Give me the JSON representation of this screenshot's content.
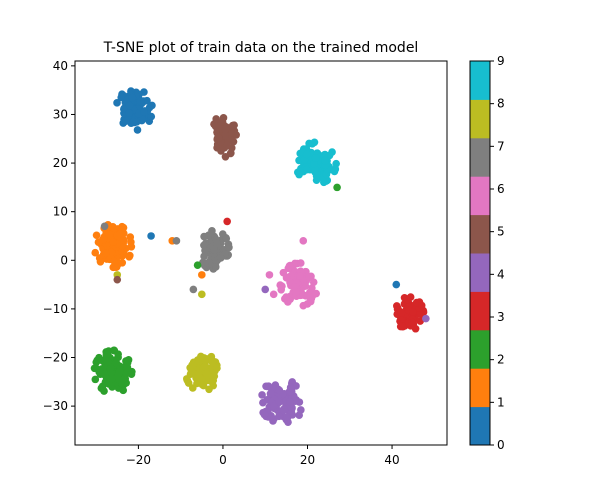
{
  "chart_data": {
    "type": "scatter",
    "title": "T-SNE plot of train data on the trained model",
    "xlabel": "",
    "ylabel": "",
    "xlim": [
      -35,
      53
    ],
    "ylim": [
      -38,
      41
    ],
    "x_ticks": [
      -20,
      0,
      20,
      40
    ],
    "x_tick_labels": [
      "−20",
      "0",
      "20",
      "40"
    ],
    "y_ticks": [
      -30,
      -20,
      -10,
      0,
      10,
      20,
      30,
      40
    ],
    "y_tick_labels": [
      "−30",
      "−20",
      "−10",
      "0",
      "10",
      "20",
      "30",
      "40"
    ],
    "grid": false,
    "colorbar": {
      "range": [
        0,
        9
      ],
      "tick_labels": [
        "0",
        "1",
        "2",
        "3",
        "4",
        "5",
        "6",
        "7",
        "8",
        "9"
      ],
      "colors": [
        "#1f77b4",
        "#ff7f0e",
        "#2ca02c",
        "#d62728",
        "#9467bd",
        "#8c564b",
        "#e377c2",
        "#7f7f7f",
        "#bcbd22",
        "#17becf"
      ]
    },
    "clusters": [
      {
        "label": 0,
        "center": [
          -21,
          31
        ],
        "spread": [
          2.6,
          2.6
        ],
        "count": 95,
        "color": "#1f77b4"
      },
      {
        "label": 1,
        "center": [
          -26,
          3
        ],
        "spread": [
          2.7,
          2.7
        ],
        "count": 120,
        "color": "#ff7f0e"
      },
      {
        "label": 2,
        "center": [
          -26,
          -23
        ],
        "spread": [
          2.7,
          2.7
        ],
        "count": 110,
        "color": "#2ca02c"
      },
      {
        "label": 3,
        "center": [
          44,
          -11
        ],
        "spread": [
          2.1,
          2.1
        ],
        "count": 100,
        "color": "#d62728"
      },
      {
        "label": 4,
        "center": [
          14,
          -29
        ],
        "spread": [
          3.2,
          2.7
        ],
        "count": 95,
        "color": "#9467bd"
      },
      {
        "label": 5,
        "center": [
          0,
          25.5
        ],
        "spread": [
          1.9,
          2.6
        ],
        "count": 75,
        "color": "#8c564b"
      },
      {
        "label": 6,
        "center": [
          18,
          -5
        ],
        "spread": [
          2.7,
          2.7
        ],
        "count": 95,
        "color": "#e377c2"
      },
      {
        "label": 7,
        "center": [
          -2,
          2
        ],
        "spread": [
          2.1,
          2.5
        ],
        "count": 95,
        "color": "#7f7f7f"
      },
      {
        "label": 8,
        "center": [
          -5,
          -23
        ],
        "spread": [
          2.3,
          2.4
        ],
        "count": 95,
        "color": "#bcbd22"
      },
      {
        "label": 9,
        "center": [
          22,
          20
        ],
        "spread": [
          2.9,
          2.6
        ],
        "count": 110,
        "color": "#17becf"
      }
    ],
    "outliers": [
      {
        "x": -17,
        "y": 5,
        "label": 0
      },
      {
        "x": -12,
        "y": 4,
        "label": 1
      },
      {
        "x": -11,
        "y": 4,
        "label": 7
      },
      {
        "x": 1,
        "y": 8,
        "label": 3
      },
      {
        "x": -7,
        "y": -6,
        "label": 7
      },
      {
        "x": -5,
        "y": -7,
        "label": 8
      },
      {
        "x": -5,
        "y": -3,
        "label": 1
      },
      {
        "x": 11,
        "y": -3,
        "label": 6
      },
      {
        "x": 10,
        "y": -6,
        "label": 4
      },
      {
        "x": 12,
        "y": -7,
        "label": 6
      },
      {
        "x": 19,
        "y": 4,
        "label": 6
      },
      {
        "x": 27,
        "y": 15,
        "label": 2
      },
      {
        "x": 41,
        "y": -5,
        "label": 0
      },
      {
        "x": 48,
        "y": -12,
        "label": 4
      },
      {
        "x": -25,
        "y": -3,
        "label": 8
      },
      {
        "x": -25,
        "y": -4,
        "label": 5
      },
      {
        "x": -28,
        "y": 7,
        "label": 7
      },
      {
        "x": -6,
        "y": -1,
        "label": 2
      }
    ]
  }
}
